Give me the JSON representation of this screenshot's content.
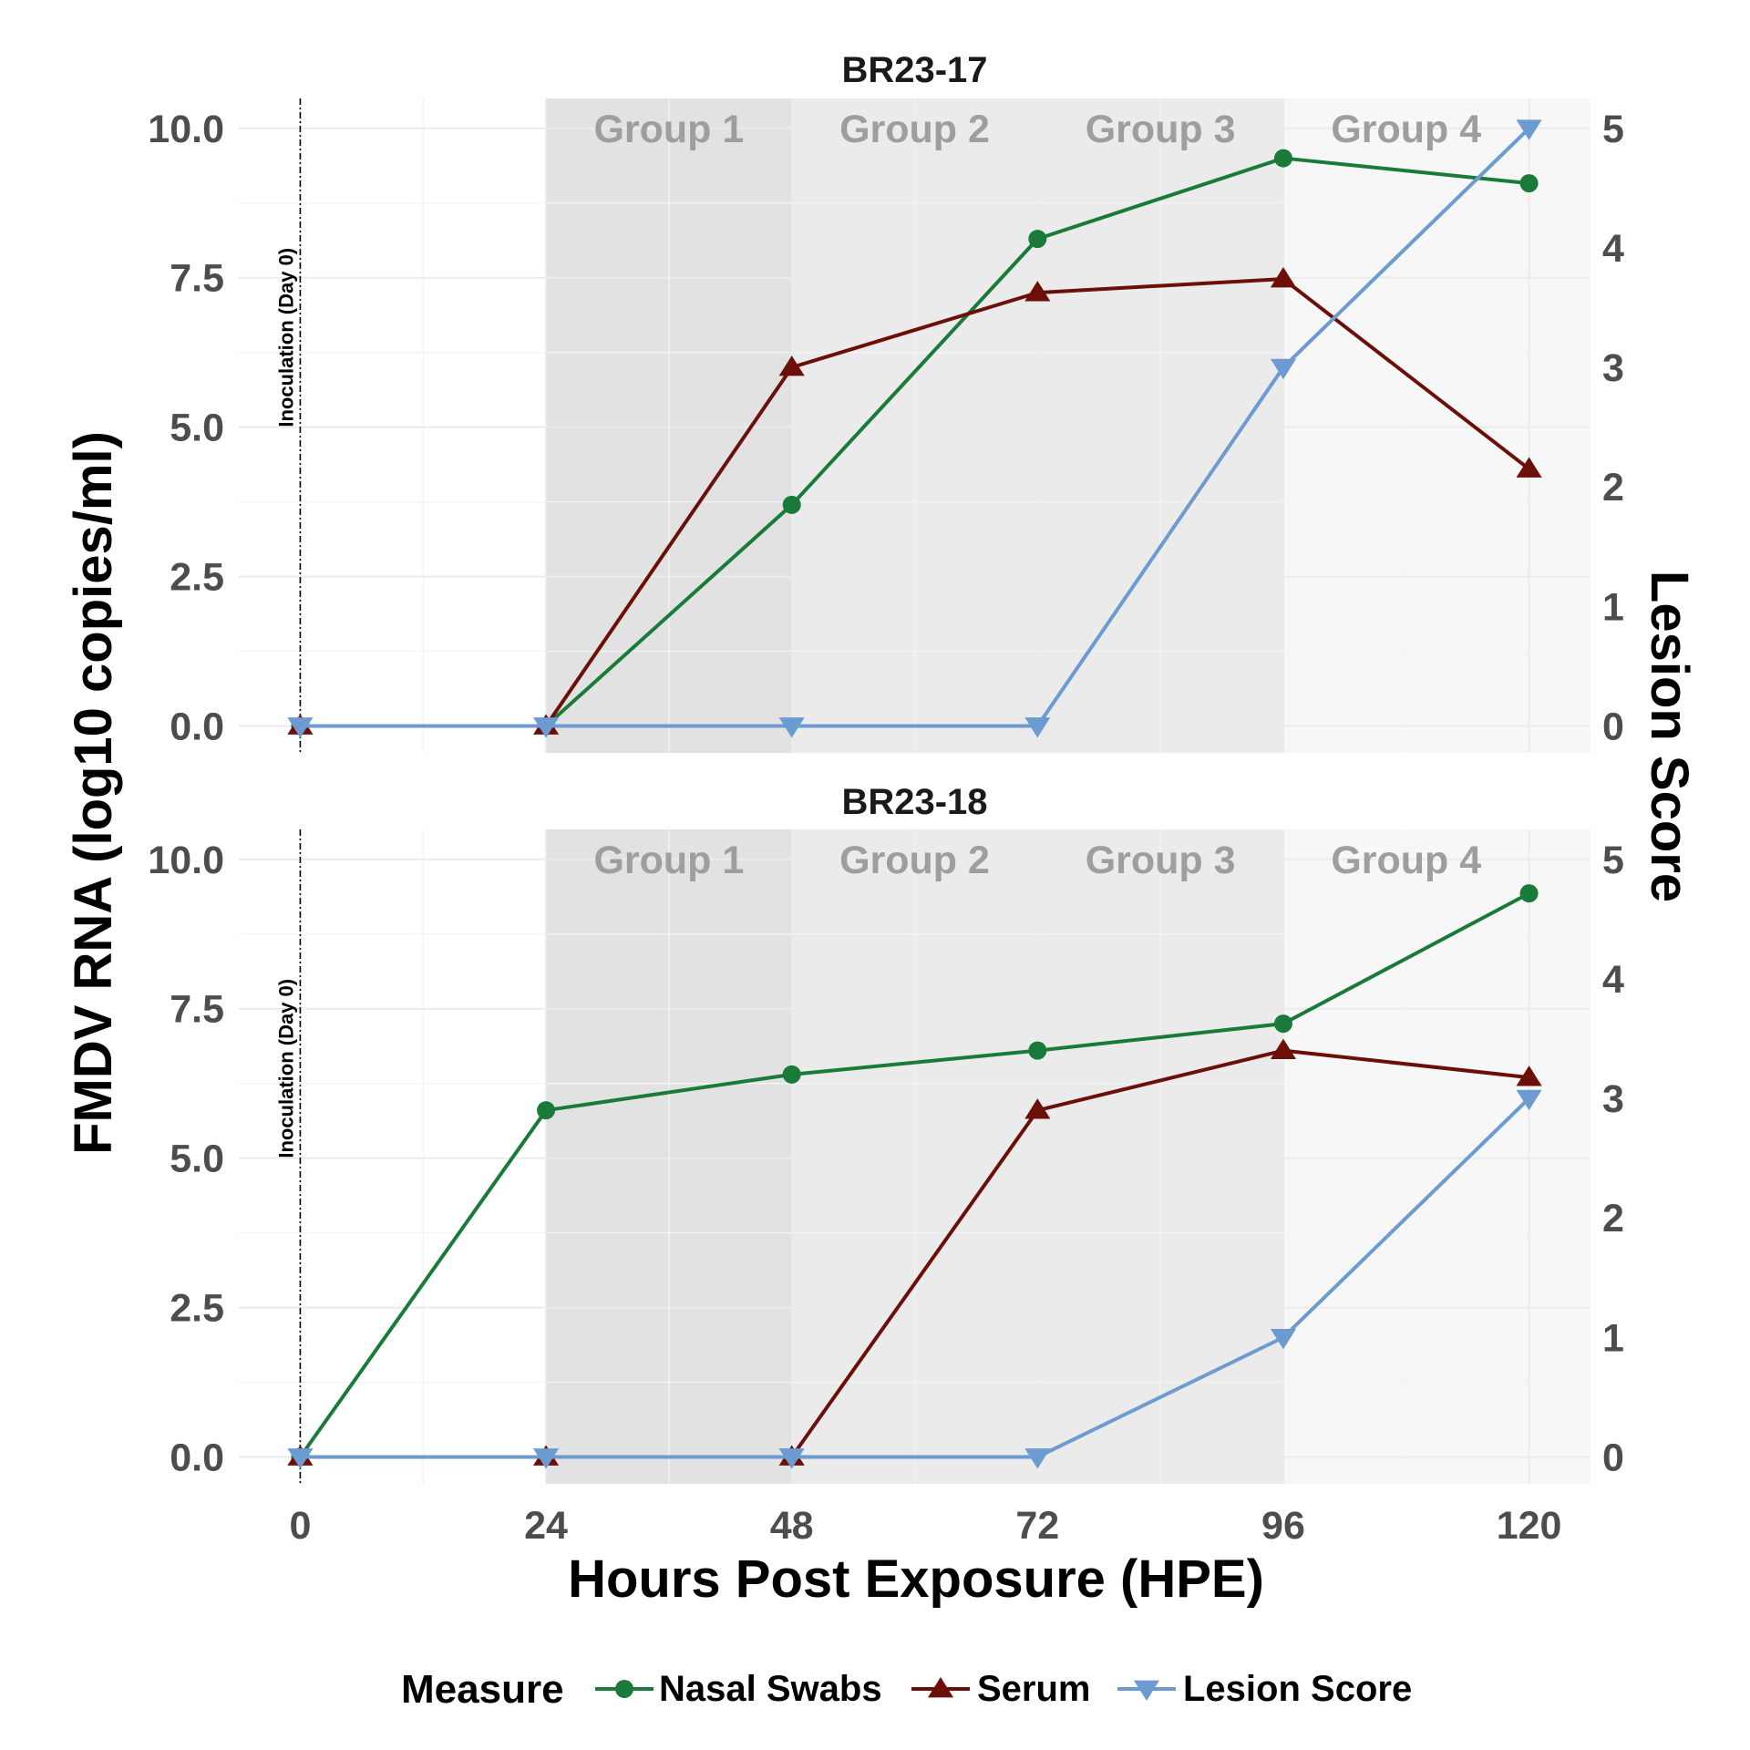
{
  "chart_data": {
    "type": "line",
    "xlabel": "Hours Post Exposure (HPE)",
    "ylabel": "FMDV RNA (log10 copies/ml)",
    "ylabel_right": "Lesion Score",
    "x_ticks": [
      0,
      24,
      48,
      72,
      96,
      120
    ],
    "y_ticks": [
      "0.0",
      "2.5",
      "5.0",
      "7.5",
      "10.0"
    ],
    "y_right_ticks": [
      "0",
      "1",
      "2",
      "3",
      "4",
      "5"
    ],
    "xlim": [
      -6,
      126
    ],
    "ylim": [
      -0.45,
      10.5
    ],
    "ylim_right": [
      -0.225,
      5.25
    ],
    "secondary_scale": 2,
    "grid": true,
    "annotation": "Inoculation (Day 0)",
    "groups": [
      {
        "label": "Group 1",
        "range": [
          24,
          48
        ],
        "color": "#e2e2e2"
      },
      {
        "label": "Group 2",
        "range": [
          48,
          72
        ],
        "color": "#ebebeb"
      },
      {
        "label": "Group 3",
        "range": [
          72,
          96
        ],
        "color": "#ebebeb"
      },
      {
        "label": "Group 4",
        "range": [
          96,
          126
        ],
        "color": "#f7f7f7"
      }
    ],
    "legend": {
      "title": "Measure",
      "placement": "bottom",
      "items": [
        {
          "label": "Nasal Swabs",
          "color": "#1a7a3a",
          "marker": "circle"
        },
        {
          "label": "Serum",
          "color": "#6b0f08",
          "marker": "triangle-up"
        },
        {
          "label": "Lesion Score",
          "color": "#6b9bd1",
          "marker": "triangle-down"
        }
      ]
    },
    "panels": [
      {
        "title": "BR23-17",
        "x": [
          0,
          24,
          48,
          72,
          96,
          120
        ],
        "series": [
          {
            "name": "Nasal Swabs",
            "axis": "left",
            "values": [
              0,
              0,
              3.7,
              8.15,
              9.5,
              9.08
            ]
          },
          {
            "name": "Serum",
            "axis": "left",
            "values": [
              0,
              0,
              6.0,
              7.25,
              7.48,
              4.3
            ]
          },
          {
            "name": "Lesion Score",
            "axis": "right",
            "values": [
              0,
              0,
              0,
              0,
              3,
              5
            ]
          }
        ]
      },
      {
        "title": "BR23-18",
        "x": [
          0,
          24,
          48,
          72,
          96,
          120
        ],
        "series": [
          {
            "name": "Nasal Swabs",
            "axis": "left",
            "values": [
              0,
              5.8,
              6.4,
              6.8,
              7.25,
              9.43
            ]
          },
          {
            "name": "Serum",
            "axis": "left",
            "values": [
              0,
              0,
              0,
              5.8,
              6.8,
              6.35
            ]
          },
          {
            "name": "Lesion Score",
            "axis": "right",
            "values": [
              0,
              0,
              0,
              0,
              1,
              3
            ]
          }
        ]
      }
    ]
  }
}
